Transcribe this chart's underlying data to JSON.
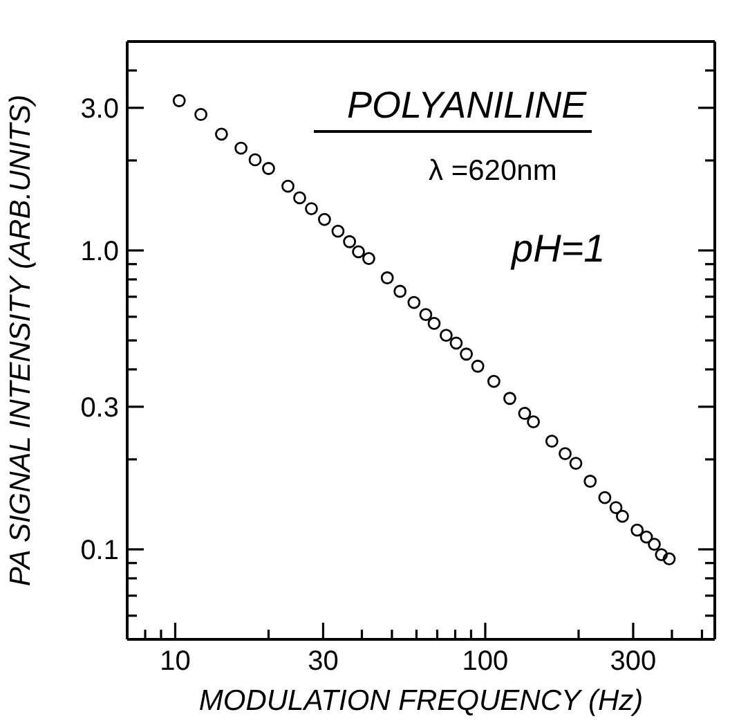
{
  "chart_data": {
    "type": "scatter",
    "xlabel": "MODULATION FREQUENCY (Hz)",
    "ylabel": "PA SIGNAL INTENSITY (ARB.UNITS)",
    "annotations": [
      "POLYANILINE",
      "λ =620nm",
      "pH=1"
    ],
    "log": "xy",
    "marker": "circle",
    "xlim": [
      7,
      550
    ],
    "ylim": [
      0.05,
      5
    ],
    "xticks": [
      {
        "value": 8,
        "label": null
      },
      {
        "value": 9,
        "label": null
      },
      10,
      {
        "value": 20,
        "label": null
      },
      30,
      {
        "value": 40,
        "label": null
      },
      {
        "value": 50,
        "label": null
      },
      {
        "value": 60,
        "label": null
      },
      {
        "value": 70,
        "label": null
      },
      {
        "value": 80,
        "label": null
      },
      {
        "value": 90,
        "label": null
      },
      100,
      {
        "value": 200,
        "label": null
      },
      300,
      {
        "value": 400,
        "label": null
      },
      {
        "value": 500,
        "label": null
      }
    ],
    "yticks": [
      {
        "value": 0.06,
        "label": null
      },
      {
        "value": 0.07,
        "label": null
      },
      {
        "value": 0.08,
        "label": null
      },
      {
        "value": 0.09,
        "label": null
      },
      {
        "value": 0.1,
        "label": "0.1"
      },
      {
        "value": 0.2,
        "label": null
      },
      {
        "value": 0.3,
        "label": "0.3"
      },
      {
        "value": 0.4,
        "label": null
      },
      {
        "value": 0.5,
        "label": null
      },
      {
        "value": 0.6,
        "label": null
      },
      {
        "value": 0.7,
        "label": null
      },
      {
        "value": 0.8,
        "label": null
      },
      {
        "value": 0.9,
        "label": null
      },
      {
        "value": 1,
        "label": "1.0"
      },
      {
        "value": 2,
        "label": null
      },
      {
        "value": 3,
        "label": "3.0"
      },
      {
        "value": 4,
        "label": null
      }
    ],
    "series": [
      {
        "color": "#000000",
        "x": [
          10.3,
          12.1,
          14.1,
          16.3,
          18.1,
          20.0,
          23.1,
          25.2,
          27.5,
          30.3,
          33.5,
          36.5,
          39.0,
          42.1,
          48.3,
          53.1,
          58.9,
          64.3,
          68.4,
          74.8,
          80.6,
          86.9,
          94.6,
          106.6,
          120,
          134,
          143,
          164,
          181,
          196,
          218,
          243,
          264,
          277,
          309,
          331,
          351,
          370,
          392
        ],
        "values": [
          3.17,
          2.85,
          2.45,
          2.2,
          2.01,
          1.88,
          1.64,
          1.5,
          1.38,
          1.27,
          1.16,
          1.07,
          0.99,
          0.94,
          0.81,
          0.73,
          0.67,
          0.61,
          0.57,
          0.52,
          0.49,
          0.45,
          0.41,
          0.365,
          0.32,
          0.285,
          0.267,
          0.23,
          0.209,
          0.194,
          0.169,
          0.149,
          0.138,
          0.129,
          0.116,
          0.11,
          0.104,
          0.096,
          0.093
        ]
      }
    ]
  }
}
